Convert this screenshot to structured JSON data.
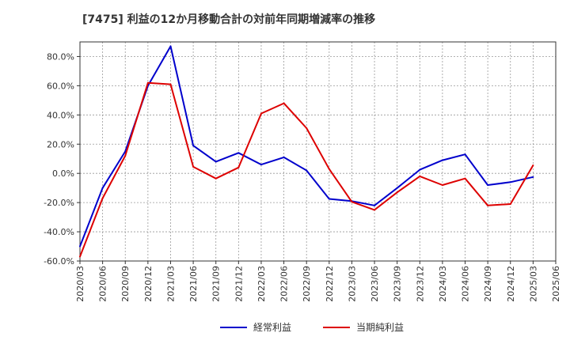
{
  "chart_data": {
    "type": "line",
    "title": "[7475]  利益の12か月移動合計の対前年同期増減率の推移",
    "xlabel": "",
    "ylabel": "",
    "categories": [
      "2020/03",
      "2020/06",
      "2020/09",
      "2020/12",
      "2021/03",
      "2021/06",
      "2021/09",
      "2021/12",
      "2022/03",
      "2022/06",
      "2022/09",
      "2022/12",
      "2023/03",
      "2023/06",
      "2023/09",
      "2023/12",
      "2024/03",
      "2024/06",
      "2024/09",
      "2024/12",
      "2025/03",
      "2025/06"
    ],
    "yticks": [
      "80.0%",
      "60.0%",
      "40.0%",
      "20.0%",
      "0.0%",
      "-20.0%",
      "-40.0%",
      "-60.0%"
    ],
    "ylim": [
      -60,
      90
    ],
    "grid": true,
    "legend_position": "bottom",
    "series": [
      {
        "name": "経常利益",
        "color": "#0000cc",
        "values": [
          -50,
          -10,
          15,
          60,
          87,
          19,
          8,
          14,
          6,
          11,
          2,
          -17.5,
          -19,
          -22,
          -10,
          2.5,
          9,
          13,
          -8,
          -6,
          -2.5,
          null
        ]
      },
      {
        "name": "当期純利益",
        "color": "#dd0000",
        "values": [
          -57,
          -17,
          12,
          62,
          61,
          4.5,
          -3.5,
          4,
          41,
          48,
          31,
          3,
          -19.5,
          -25,
          -13,
          -2,
          -8,
          -3.5,
          -22,
          -21,
          5.5,
          null
        ]
      }
    ]
  }
}
